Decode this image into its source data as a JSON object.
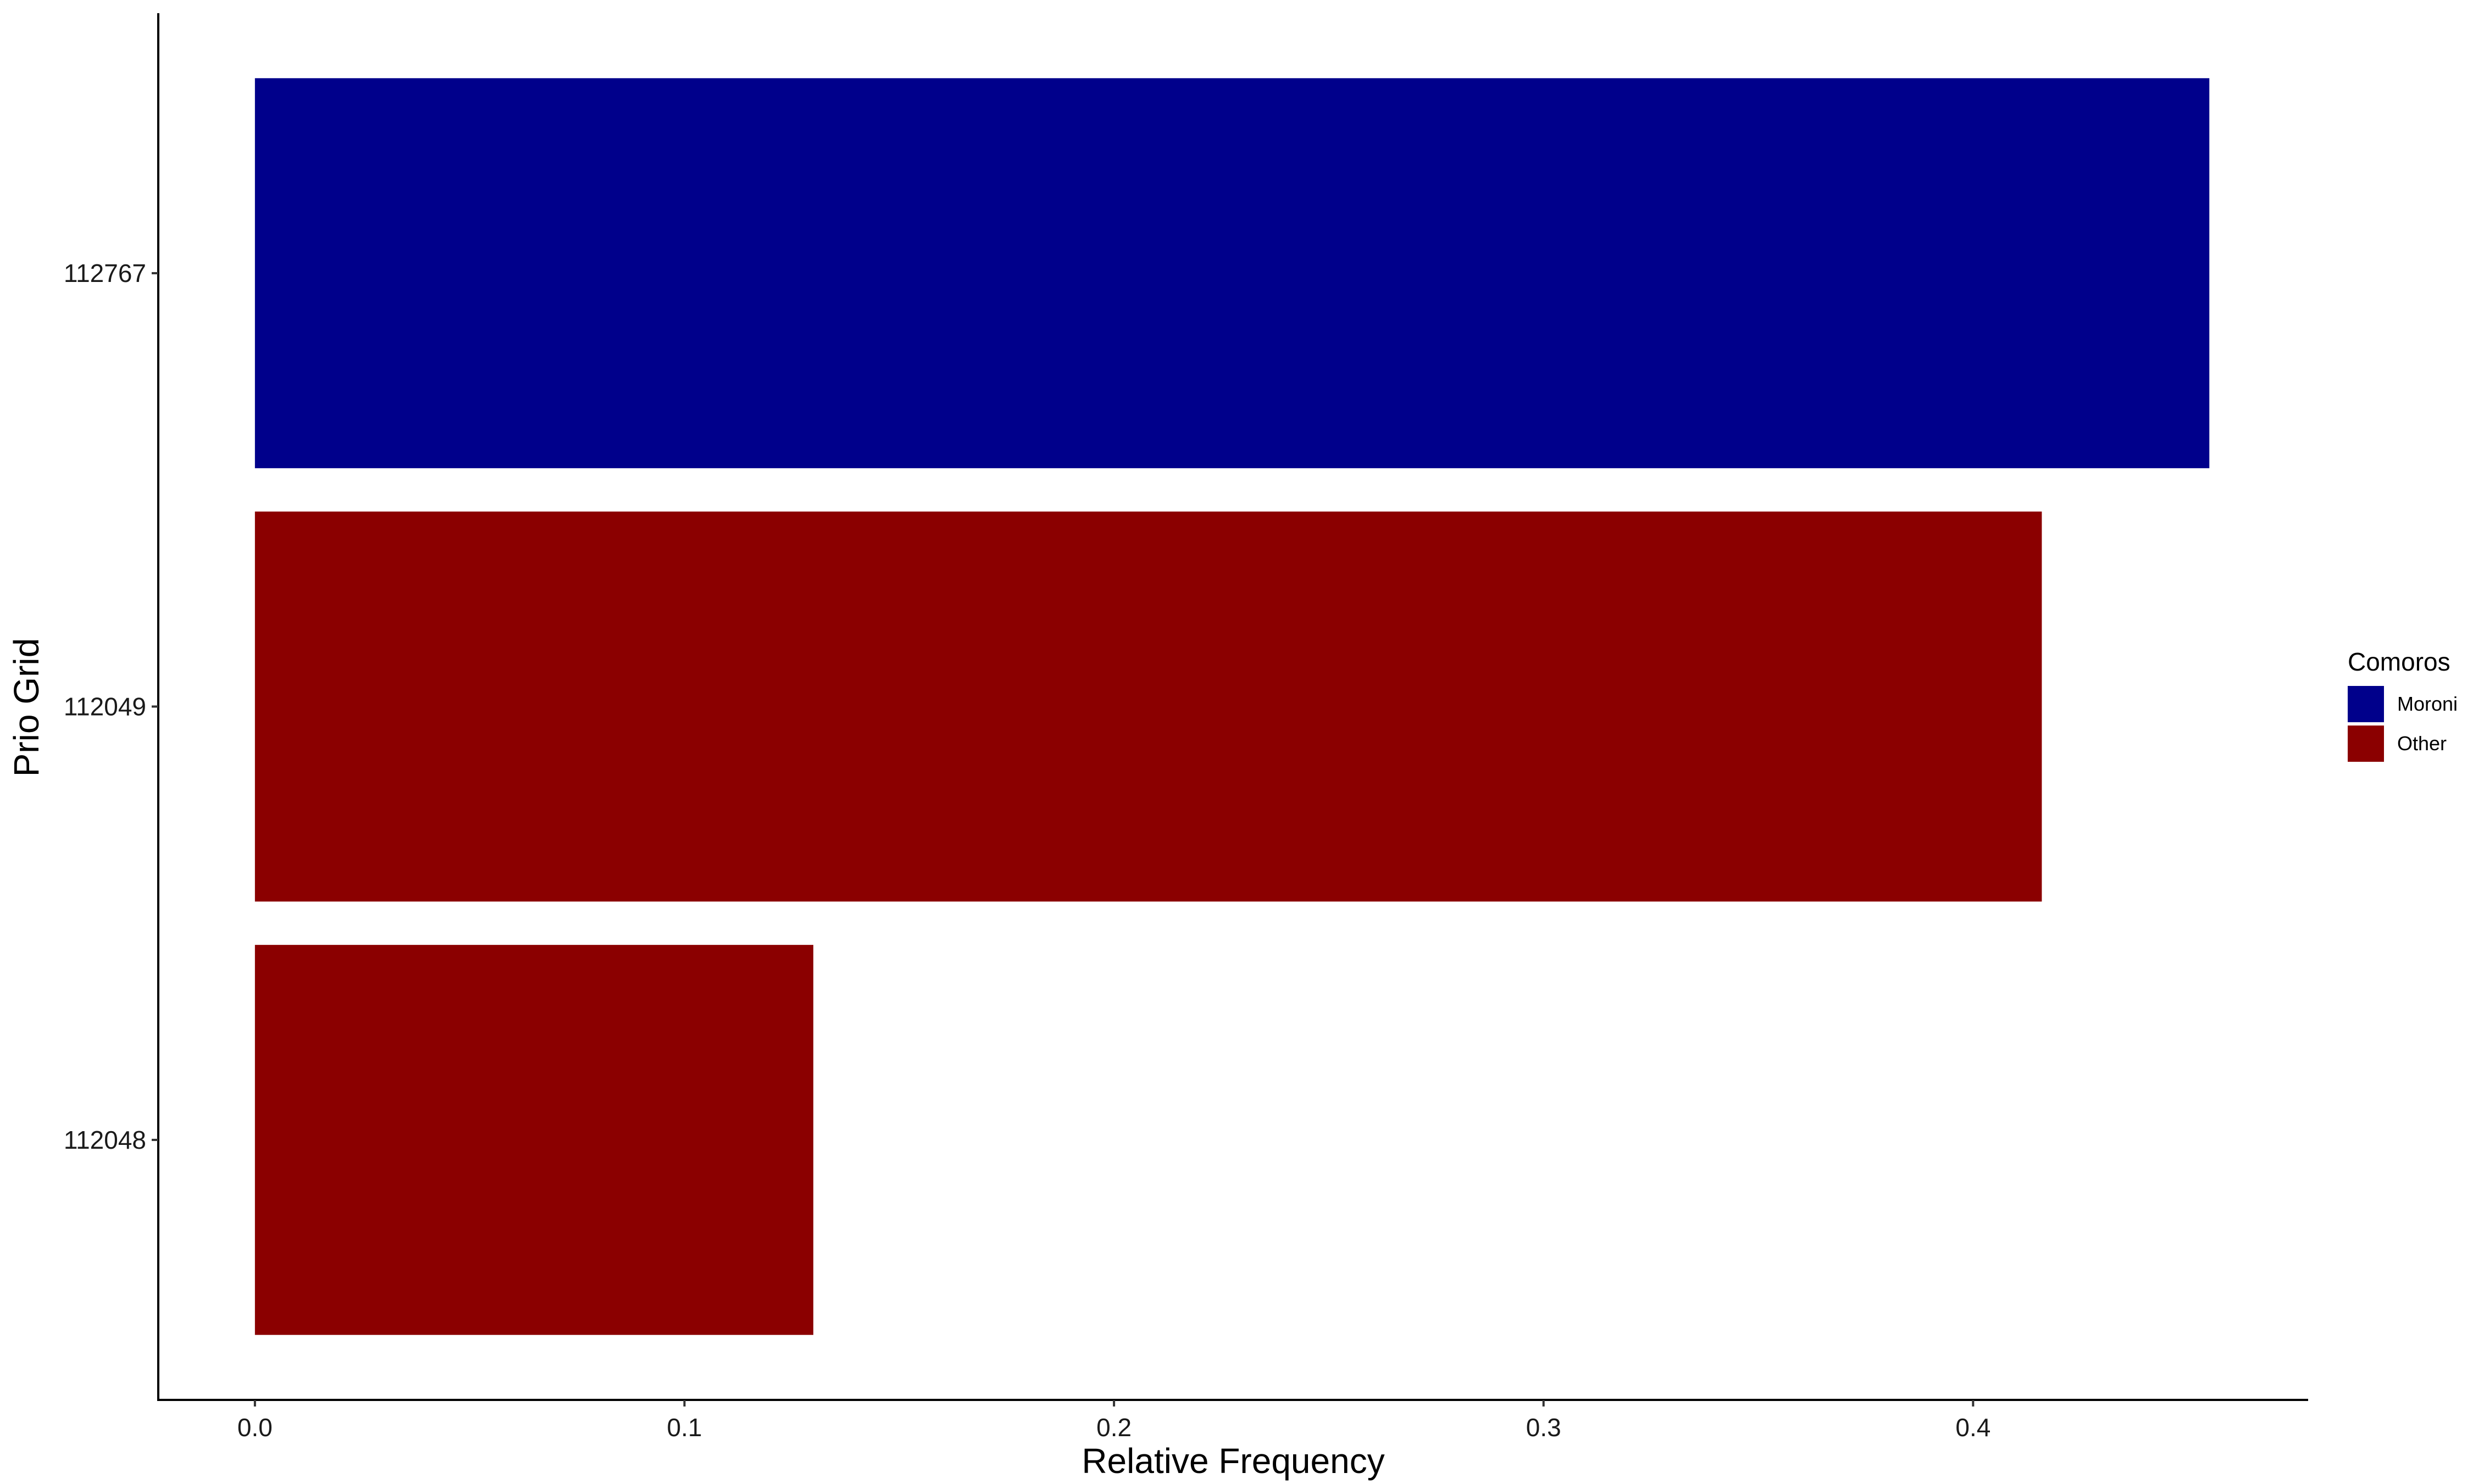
{
  "chart_data": {
    "type": "bar",
    "orientation": "horizontal",
    "categories": [
      "112048",
      "112049",
      "112767"
    ],
    "values": [
      0.13,
      0.416,
      0.455
    ],
    "bar_groups": [
      "Other",
      "Other",
      "Moroni"
    ],
    "xlabel": "Relative Frequency",
    "ylabel": "Prio Grid",
    "xlim": [
      -0.0225,
      0.478
    ],
    "xticks": [
      0.0,
      0.1,
      0.2,
      0.3,
      0.4
    ],
    "xtick_labels": [
      "0.0",
      "0.1",
      "0.2",
      "0.3",
      "0.4"
    ],
    "grid": false,
    "legend": {
      "title": "Comoros",
      "placement": "right",
      "entries": [
        {
          "label": "Moroni",
          "color": "#00008B"
        },
        {
          "label": "Other",
          "color": "#8B0000"
        }
      ]
    }
  }
}
